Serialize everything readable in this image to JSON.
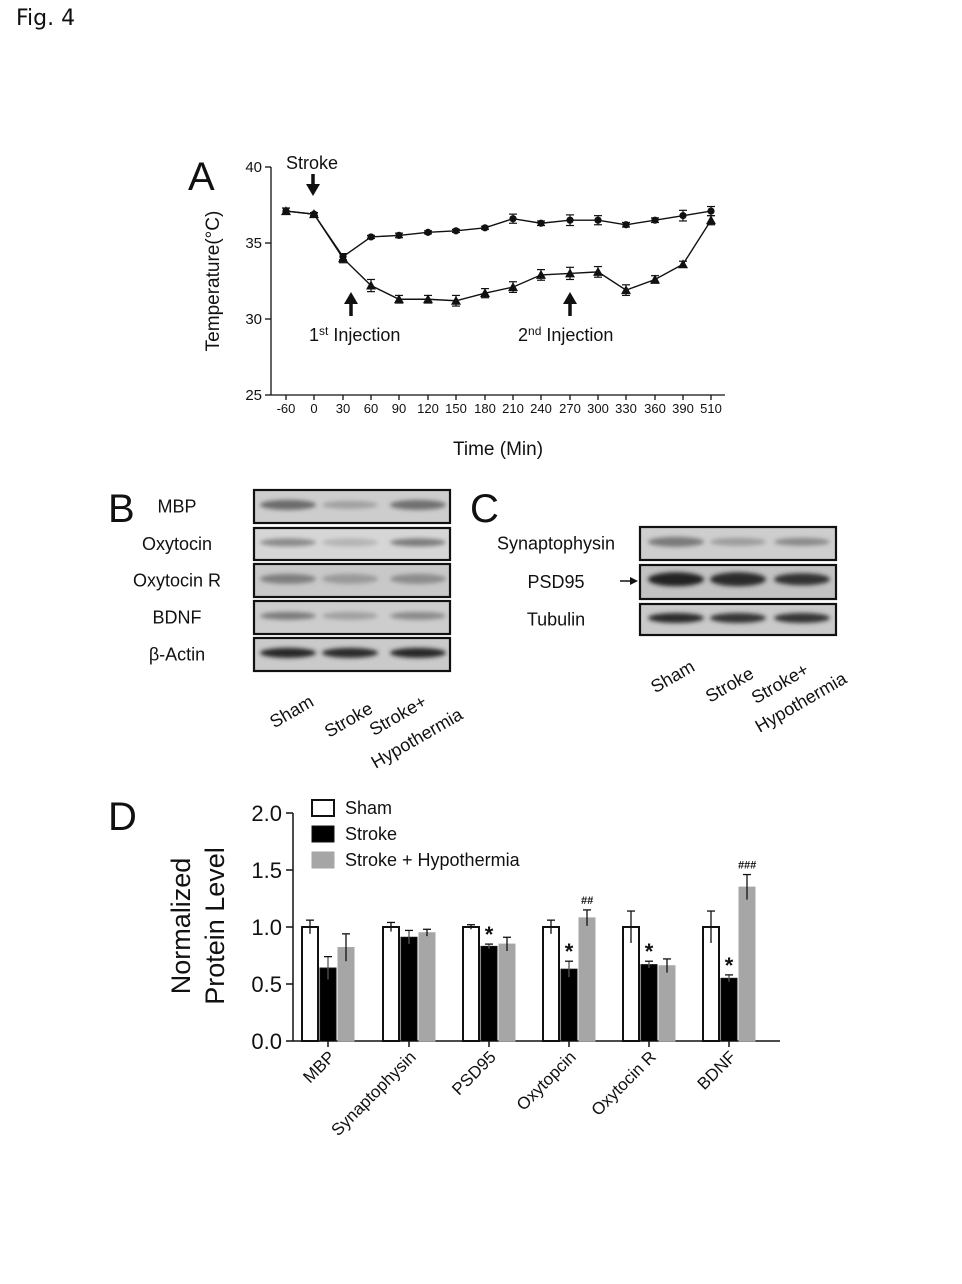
{
  "figure_title": "Fig. 4",
  "panel_labels": {
    "A": "A",
    "B": "B",
    "C": "C",
    "D": "D"
  },
  "chart_data": [
    {
      "panel": "A",
      "type": "line",
      "xlabel": "Time (Min)",
      "ylabel": "Temperature(°C)",
      "x": [
        "-60",
        "0",
        "30",
        "60",
        "90",
        "120",
        "150",
        "180",
        "210",
        "240",
        "270",
        "300",
        "330",
        "360",
        "390",
        "510"
      ],
      "ylim": [
        25,
        40
      ],
      "yticks": [
        "25",
        "30",
        "35",
        "40"
      ],
      "series": [
        {
          "marker": "circle",
          "values": [
            37.1,
            36.9,
            34.1,
            35.4,
            35.5,
            35.7,
            35.8,
            36.0,
            36.6,
            36.3,
            36.5,
            36.5,
            36.2,
            36.5,
            36.8,
            37.1
          ],
          "errors": [
            0.2,
            0.1,
            0.2,
            0.1,
            0.15,
            0.1,
            0.1,
            0.1,
            0.3,
            0.15,
            0.35,
            0.3,
            0.15,
            0.15,
            0.35,
            0.3
          ]
        },
        {
          "marker": "triangle",
          "values": [
            37.1,
            36.9,
            34.0,
            32.2,
            31.3,
            31.3,
            31.2,
            31.7,
            32.1,
            32.9,
            33.0,
            33.1,
            31.9,
            32.6,
            33.6,
            36.5
          ],
          "errors": [
            0.2,
            0.1,
            0.3,
            0.4,
            0.25,
            0.25,
            0.35,
            0.3,
            0.35,
            0.35,
            0.4,
            0.35,
            0.35,
            0.25,
            0.2,
            0.3
          ]
        }
      ],
      "annotations": [
        {
          "text": "Stroke",
          "at_x": "0"
        },
        {
          "text": "1",
          "sup": "st",
          "rest": " Injection",
          "at_x": "30"
        },
        {
          "text": "2",
          "sup": "nd",
          "rest": " Injection",
          "at_x": "270"
        }
      ]
    },
    {
      "panel": "D",
      "type": "bar",
      "ylabel_lines": [
        "Normalized",
        "Protein Level"
      ],
      "categories": [
        "MBP",
        "Synaptophysin",
        "PSD95",
        "Oxytopcin",
        "Oxytocin R",
        "BDNF"
      ],
      "ylim": [
        0,
        2.0
      ],
      "yticks": [
        "0.0",
        "0.5",
        "1.0",
        "1.5",
        "2.0"
      ],
      "series": [
        {
          "name": "Sham",
          "color": "#ffffff",
          "values": [
            1.0,
            1.0,
            1.0,
            1.0,
            1.0,
            1.0
          ],
          "errors": [
            0.06,
            0.04,
            0.02,
            0.06,
            0.14,
            0.14
          ]
        },
        {
          "name": "Stroke",
          "color": "#000000",
          "values": [
            0.64,
            0.91,
            0.83,
            0.63,
            0.67,
            0.55
          ],
          "errors": [
            0.1,
            0.06,
            0.02,
            0.07,
            0.03,
            0.03
          ]
        },
        {
          "name": "Stroke + Hypothermia",
          "color": "#a6a6a6",
          "values": [
            0.82,
            0.95,
            0.85,
            1.08,
            0.66,
            1.35
          ],
          "errors": [
            0.12,
            0.03,
            0.06,
            0.07,
            0.06,
            0.11
          ]
        }
      ],
      "significance": [
        {
          "category": "PSD95",
          "series": "Stroke",
          "mark": "*"
        },
        {
          "category": "Oxytopcin",
          "series": "Stroke",
          "mark": "*"
        },
        {
          "category": "Oxytopcin",
          "series": "Stroke + Hypothermia",
          "mark": "##"
        },
        {
          "category": "Oxytocin R",
          "series": "Stroke",
          "mark": "*"
        },
        {
          "category": "BDNF",
          "series": "Stroke",
          "mark": "*"
        },
        {
          "category": "BDNF",
          "series": "Stroke + Hypothermia",
          "mark": "###"
        }
      ],
      "legend": "top-left"
    }
  ],
  "blot_B": {
    "proteins": [
      "MBP",
      "Oxytocin",
      "Oxytocin R",
      "BDNF",
      "β-Actin"
    ],
    "lanes": [
      "Sham",
      "Stroke",
      "Stroke+",
      "Hypothermia"
    ]
  },
  "blot_C": {
    "proteins": [
      "Synaptophysin",
      "PSD95",
      "Tubulin"
    ],
    "lanes": [
      "Sham",
      "Stroke",
      "Stroke+",
      "Hypothermia"
    ]
  }
}
